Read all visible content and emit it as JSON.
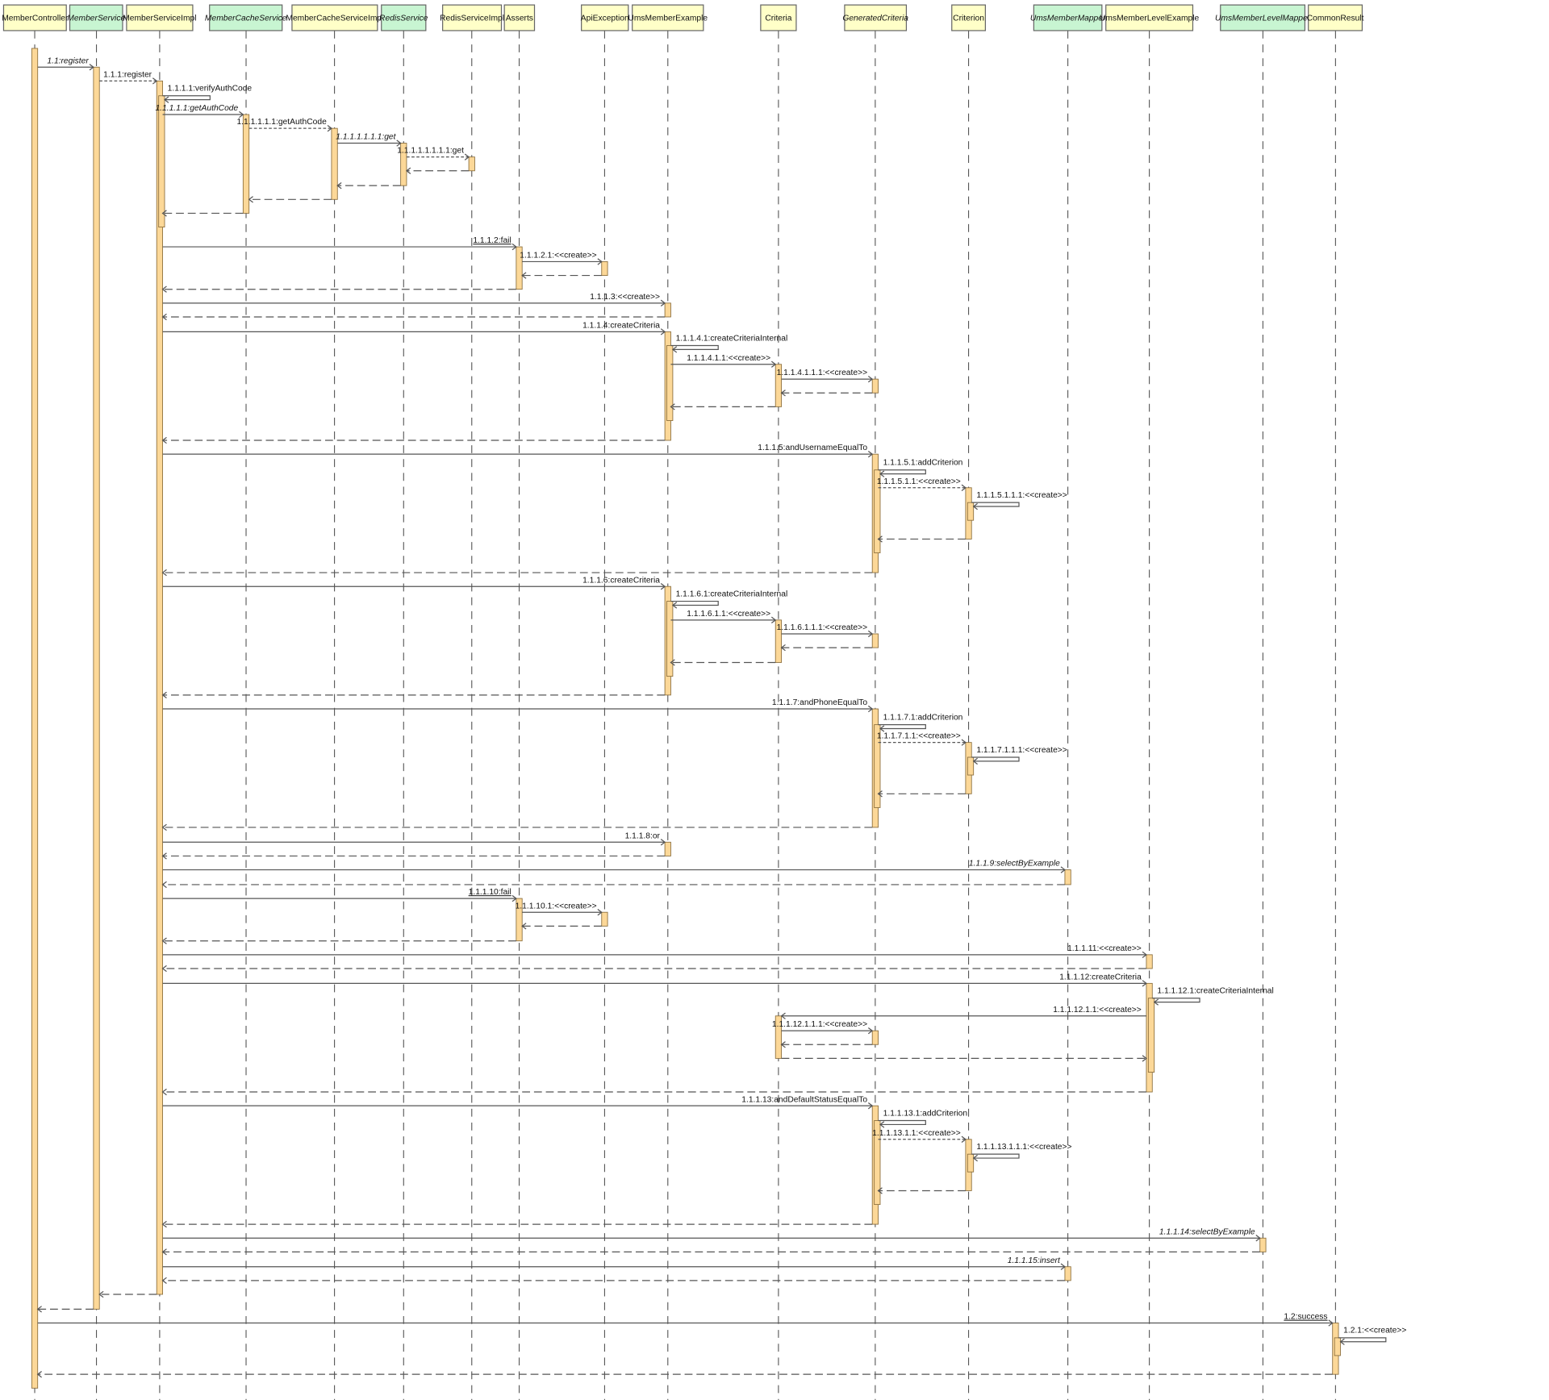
{
  "diagram": {
    "type": "sequence",
    "colors": {
      "class_box": "#ffffc8",
      "interface_box": "#c8f5d2",
      "activation": "#fcd898",
      "line": "#555555"
    },
    "participants": [
      {
        "name": "MemberController",
        "kind": "class"
      },
      {
        "name": "MemberService",
        "kind": "interface"
      },
      {
        "name": "MemberServiceImpl",
        "kind": "class"
      },
      {
        "name": "MemberCacheService",
        "kind": "interface"
      },
      {
        "name": "MemberCacheServiceImpl",
        "kind": "class"
      },
      {
        "name": "RedisService",
        "kind": "interface"
      },
      {
        "name": "RedisServiceImpl",
        "kind": "class"
      },
      {
        "name": "Asserts",
        "kind": "class"
      },
      {
        "name": "ApiException",
        "kind": "class"
      },
      {
        "name": "UmsMemberExample",
        "kind": "class"
      },
      {
        "name": "Criteria",
        "kind": "class"
      },
      {
        "name": "GeneratedCriteria",
        "kind": "abstract"
      },
      {
        "name": "Criterion",
        "kind": "class"
      },
      {
        "name": "UmsMemberMapper",
        "kind": "interface"
      },
      {
        "name": "UmsMemberLevelExample",
        "kind": "class"
      },
      {
        "name": "UmsMemberLevelMapper",
        "kind": "interface"
      },
      {
        "name": "CommonResult",
        "kind": "class"
      }
    ],
    "messages": [
      {
        "from": 0,
        "to": 1,
        "label": "1.1:register",
        "type": "call",
        "italic": true
      },
      {
        "from": 1,
        "to": 2,
        "label": "1.1.1:register",
        "type": "dashed"
      },
      {
        "from": 2,
        "to": 2,
        "label": "1.1.1.1:verifyAuthCode",
        "type": "self"
      },
      {
        "from": 2,
        "to": 3,
        "label": "1.1.1.1.1:getAuthCode",
        "type": "call",
        "italic": true
      },
      {
        "from": 3,
        "to": 4,
        "label": "1.1.1.1.1.1:getAuthCode",
        "type": "dashed"
      },
      {
        "from": 4,
        "to": 5,
        "label": "1.1.1.1.1.1.1:get",
        "type": "call",
        "italic": true
      },
      {
        "from": 5,
        "to": 6,
        "label": "1.1.1.1.1.1.1.1:get",
        "type": "dashed"
      },
      {
        "from": 6,
        "to": 5,
        "type": "return"
      },
      {
        "from": 5,
        "to": 4,
        "type": "return"
      },
      {
        "from": 4,
        "to": 3,
        "type": "return"
      },
      {
        "from": 3,
        "to": 2,
        "type": "return"
      },
      {
        "from": 2,
        "to": 7,
        "label": "1.1.1.2:fail",
        "type": "call",
        "underline": true
      },
      {
        "from": 7,
        "to": 8,
        "label": "1.1.1.2.1:<<create>>",
        "type": "call"
      },
      {
        "from": 8,
        "to": 7,
        "type": "return"
      },
      {
        "from": 7,
        "to": 2,
        "type": "return"
      },
      {
        "from": 2,
        "to": 9,
        "label": "1.1.1.3:<<create>>",
        "type": "call"
      },
      {
        "from": 9,
        "to": 2,
        "type": "return"
      },
      {
        "from": 2,
        "to": 9,
        "label": "1.1.1.4:createCriteria",
        "type": "call"
      },
      {
        "from": 9,
        "to": 9,
        "label": "1.1.1.4.1:createCriteriaInternal",
        "type": "self"
      },
      {
        "from": 9,
        "to": 10,
        "label": "1.1.1.4.1.1:<<create>>",
        "type": "call"
      },
      {
        "from": 10,
        "to": 11,
        "label": "1.1.1.4.1.1.1:<<create>>",
        "type": "call"
      },
      {
        "from": 11,
        "to": 10,
        "type": "return"
      },
      {
        "from": 10,
        "to": 9,
        "type": "return"
      },
      {
        "from": 9,
        "to": 2,
        "type": "return"
      },
      {
        "from": 2,
        "to": 11,
        "label": "1.1.1.5:andUsernameEqualTo",
        "type": "call"
      },
      {
        "from": 11,
        "to": 11,
        "label": "1.1.1.5.1:addCriterion",
        "type": "self"
      },
      {
        "from": 11,
        "to": 12,
        "label": "1.1.1.5.1.1:<<create>>",
        "type": "dashed"
      },
      {
        "from": 12,
        "to": 12,
        "label": "1.1.1.5.1.1.1:<<create>>",
        "type": "self"
      },
      {
        "from": 12,
        "to": 11,
        "type": "return"
      },
      {
        "from": 11,
        "to": 2,
        "type": "return"
      },
      {
        "from": 2,
        "to": 9,
        "label": "1.1.1.6:createCriteria",
        "type": "call"
      },
      {
        "from": 9,
        "to": 9,
        "label": "1.1.1.6.1:createCriteriaInternal",
        "type": "self"
      },
      {
        "from": 9,
        "to": 10,
        "label": "1.1.1.6.1.1:<<create>>",
        "type": "call"
      },
      {
        "from": 10,
        "to": 11,
        "label": "1.1.1.6.1.1.1:<<create>>",
        "type": "call"
      },
      {
        "from": 11,
        "to": 10,
        "type": "return"
      },
      {
        "from": 10,
        "to": 9,
        "type": "return"
      },
      {
        "from": 9,
        "to": 2,
        "type": "return"
      },
      {
        "from": 2,
        "to": 11,
        "label": "1.1.1.7:andPhoneEqualTo",
        "type": "call"
      },
      {
        "from": 11,
        "to": 11,
        "label": "1.1.1.7.1:addCriterion",
        "type": "self"
      },
      {
        "from": 11,
        "to": 12,
        "label": "1.1.1.7.1.1:<<create>>",
        "type": "dashed"
      },
      {
        "from": 12,
        "to": 12,
        "label": "1.1.1.7.1.1.1:<<create>>",
        "type": "self"
      },
      {
        "from": 12,
        "to": 11,
        "type": "return"
      },
      {
        "from": 11,
        "to": 2,
        "type": "return"
      },
      {
        "from": 2,
        "to": 9,
        "label": "1.1.1.8:or",
        "type": "call"
      },
      {
        "from": 9,
        "to": 2,
        "type": "return"
      },
      {
        "from": 2,
        "to": 13,
        "label": "1.1.1.9:selectByExample",
        "type": "call",
        "italic": true
      },
      {
        "from": 13,
        "to": 2,
        "type": "return"
      },
      {
        "from": 2,
        "to": 7,
        "label": "1.1.1.10:fail",
        "type": "call",
        "underline": true
      },
      {
        "from": 7,
        "to": 8,
        "label": "1.1.1.10.1:<<create>>",
        "type": "call"
      },
      {
        "from": 8,
        "to": 7,
        "type": "return"
      },
      {
        "from": 7,
        "to": 2,
        "type": "return"
      },
      {
        "from": 2,
        "to": 14,
        "label": "1.1.1.11:<<create>>",
        "type": "call"
      },
      {
        "from": 14,
        "to": 2,
        "type": "return"
      },
      {
        "from": 2,
        "to": 14,
        "label": "1.1.1.12:createCriteria",
        "type": "call"
      },
      {
        "from": 14,
        "to": 14,
        "label": "1.1.1.12.1:createCriteriaInternal",
        "type": "self"
      },
      {
        "from": 14,
        "to": 10,
        "label": "1.1.1.12.1.1:<<create>>",
        "type": "call"
      },
      {
        "from": 10,
        "to": 11,
        "label": "1.1.1.12.1.1.1:<<create>>",
        "type": "call"
      },
      {
        "from": 11,
        "to": 10,
        "type": "return"
      },
      {
        "from": 10,
        "to": 14,
        "type": "return"
      },
      {
        "from": 14,
        "to": 2,
        "type": "return"
      },
      {
        "from": 2,
        "to": 11,
        "label": "1.1.1.13:andDefaultStatusEqualTo",
        "type": "call"
      },
      {
        "from": 11,
        "to": 11,
        "label": "1.1.1.13.1:addCriterion",
        "type": "self"
      },
      {
        "from": 11,
        "to": 12,
        "label": "1.1.1.13.1.1:<<create>>",
        "type": "dashed"
      },
      {
        "from": 12,
        "to": 12,
        "label": "1.1.1.13.1.1.1:<<create>>",
        "type": "self"
      },
      {
        "from": 12,
        "to": 11,
        "type": "return"
      },
      {
        "from": 11,
        "to": 2,
        "type": "return"
      },
      {
        "from": 2,
        "to": 15,
        "label": "1.1.1.14:selectByExample",
        "type": "call",
        "italic": true
      },
      {
        "from": 15,
        "to": 2,
        "type": "return"
      },
      {
        "from": 2,
        "to": 13,
        "label": "1.1.1.15:insert",
        "type": "call",
        "italic": true
      },
      {
        "from": 13,
        "to": 2,
        "type": "return"
      },
      {
        "from": 2,
        "to": 1,
        "type": "return"
      },
      {
        "from": 1,
        "to": 0,
        "type": "return"
      },
      {
        "from": 0,
        "to": 16,
        "label": "1.2:success",
        "type": "call",
        "underline": true
      },
      {
        "from": 16,
        "to": 16,
        "label": "1.2.1:<<create>>",
        "type": "self"
      },
      {
        "from": 16,
        "to": 0,
        "type": "return"
      }
    ]
  }
}
